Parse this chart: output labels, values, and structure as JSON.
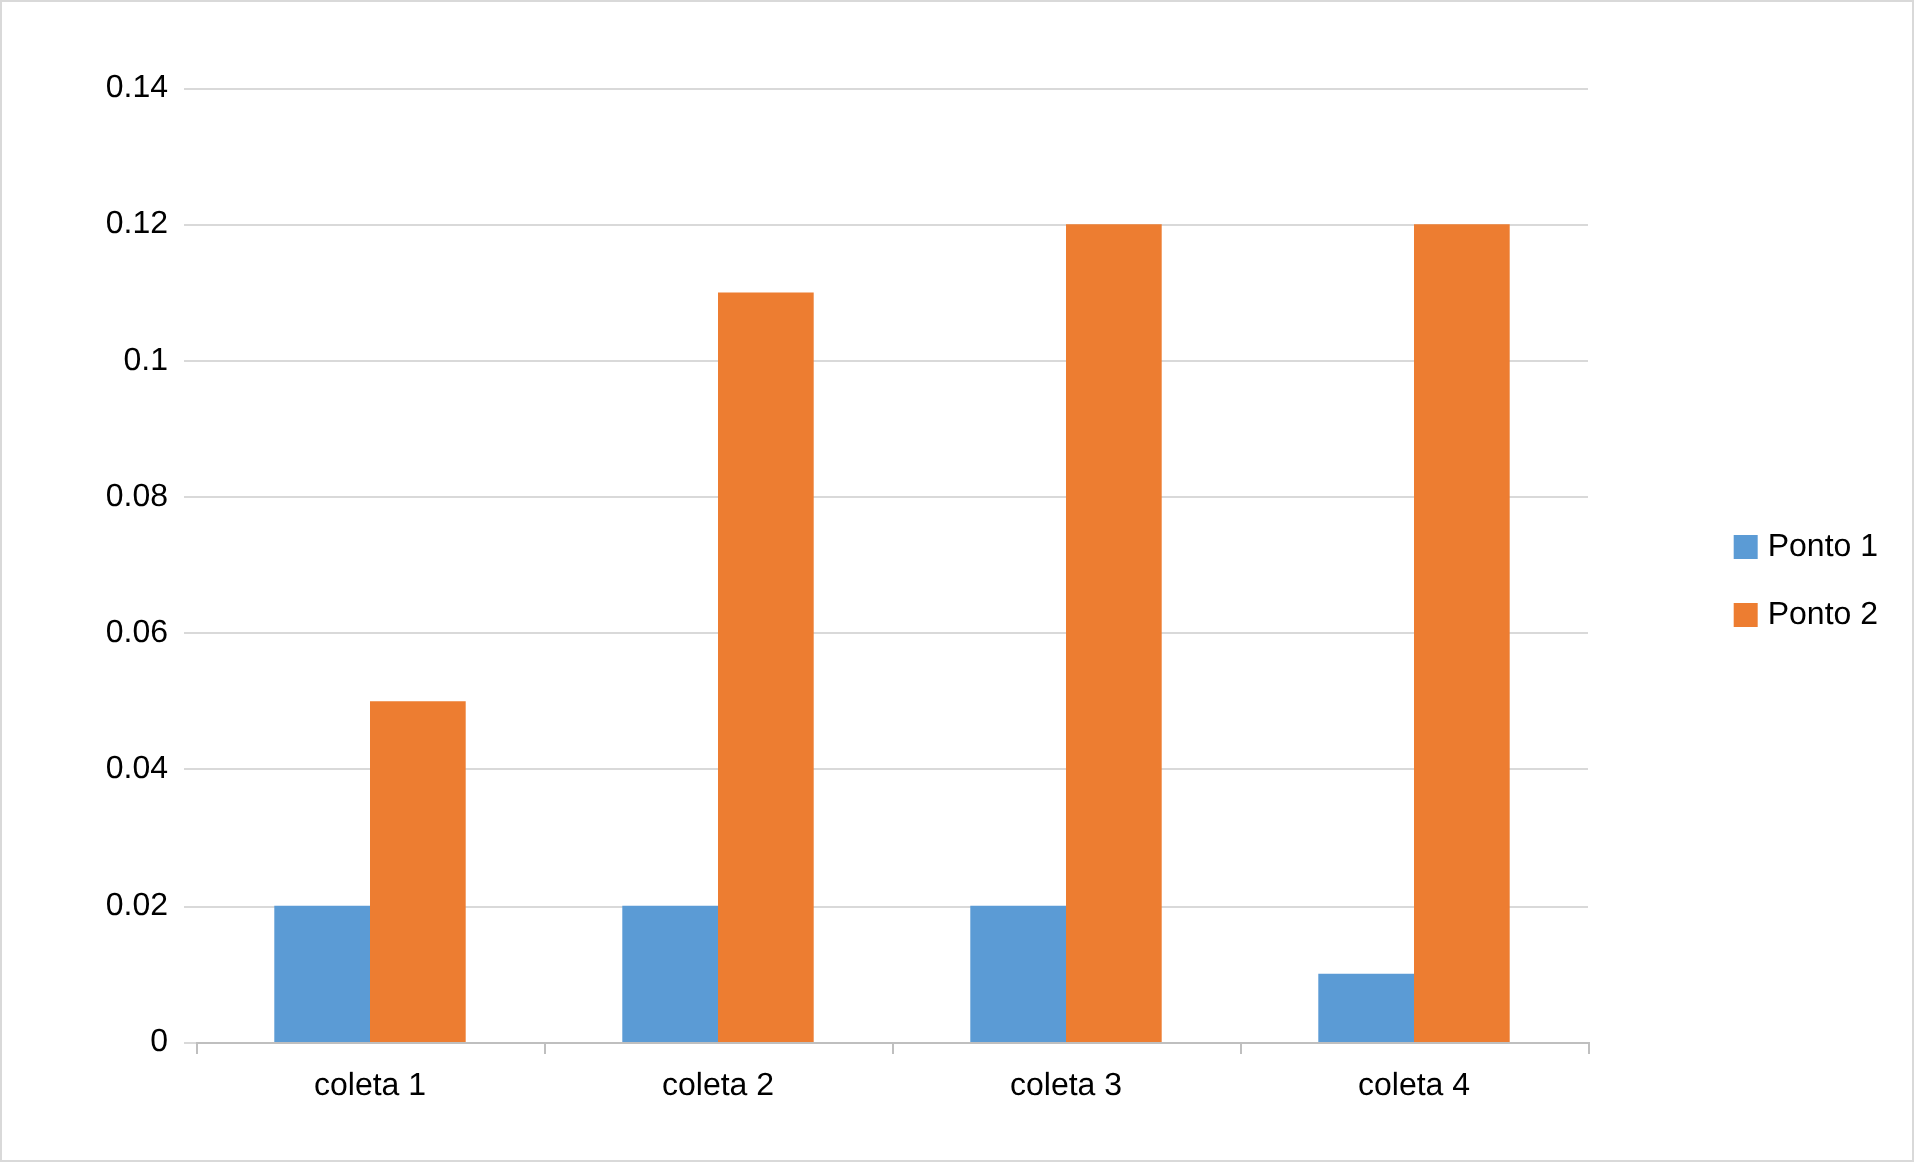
{
  "chart_data": {
    "type": "bar",
    "categories": [
      "coleta 1",
      "coleta 2",
      "coleta 3",
      "coleta 4"
    ],
    "series": [
      {
        "name": "Ponto 1",
        "color": "#5b9bd5",
        "values": [
          0.02,
          0.02,
          0.02,
          0.01
        ]
      },
      {
        "name": "Ponto 2",
        "color": "#ed7d31",
        "values": [
          0.05,
          0.11,
          0.12,
          0.12
        ]
      }
    ],
    "ylim": [
      0,
      0.14
    ],
    "yticks": [
      0,
      0.02,
      0.04,
      0.06,
      0.08,
      0.1,
      0.12,
      0.14
    ],
    "grid": "y",
    "legend": "right"
  }
}
